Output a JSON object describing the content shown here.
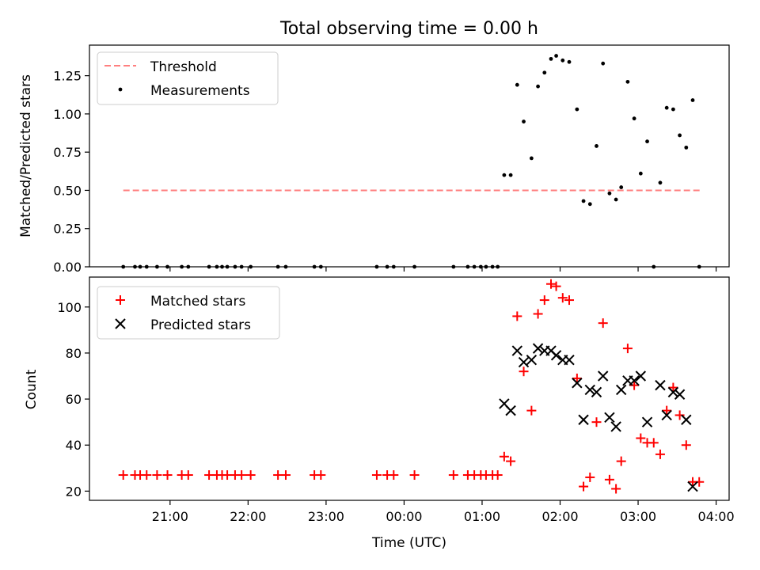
{
  "title": "Total observing time = 0.00 h",
  "colors": {
    "threshold": "#ff7f7f",
    "measurements": "#000000",
    "matched": "#ff0000",
    "predicted": "#000000"
  },
  "chart_data": [
    {
      "type": "scatter",
      "ylabel": "Matched/Predicted stars",
      "ylim": [
        0,
        1.45
      ],
      "y_ticks": [
        "0.00",
        "0.25",
        "0.50",
        "0.75",
        "1.00",
        "1.25"
      ],
      "legend": {
        "placement": "top-left",
        "entries": [
          "Threshold",
          "Measurements"
        ]
      },
      "threshold": {
        "name": "Threshold",
        "value": 0.5,
        "x_range": [
          "20:24",
          "03:48"
        ]
      },
      "series": [
        {
          "name": "Measurements",
          "points": [
            [
              "20:24",
              0.0
            ],
            [
              "20:33",
              0.0
            ],
            [
              "20:37",
              0.0
            ],
            [
              "20:42",
              0.0
            ],
            [
              "20:50",
              0.0
            ],
            [
              "20:58",
              0.0
            ],
            [
              "21:09",
              0.0
            ],
            [
              "21:14",
              0.0
            ],
            [
              "21:30",
              0.0
            ],
            [
              "21:36",
              0.0
            ],
            [
              "21:40",
              0.0
            ],
            [
              "21:44",
              0.0
            ],
            [
              "21:50",
              0.0
            ],
            [
              "21:55",
              0.0
            ],
            [
              "22:02",
              0.0
            ],
            [
              "22:23",
              0.0
            ],
            [
              "22:29",
              0.0
            ],
            [
              "22:51",
              0.0
            ],
            [
              "22:56",
              0.0
            ],
            [
              "23:39",
              0.0
            ],
            [
              "23:47",
              0.0
            ],
            [
              "23:52",
              0.0
            ],
            [
              "00:08",
              0.0
            ],
            [
              "00:38",
              0.0
            ],
            [
              "00:49",
              0.0
            ],
            [
              "00:54",
              0.0
            ],
            [
              "00:59",
              0.0
            ],
            [
              "01:03",
              0.0
            ],
            [
              "01:08",
              0.0
            ],
            [
              "01:12",
              0.0
            ],
            [
              "01:17",
              0.6
            ],
            [
              "01:22",
              0.6
            ],
            [
              "01:27",
              1.19
            ],
            [
              "01:32",
              0.95
            ],
            [
              "01:38",
              0.71
            ],
            [
              "01:43",
              1.18
            ],
            [
              "01:48",
              1.27
            ],
            [
              "01:53",
              1.36
            ],
            [
              "01:57",
              1.38
            ],
            [
              "02:02",
              1.35
            ],
            [
              "02:07",
              1.34
            ],
            [
              "02:13",
              1.03
            ],
            [
              "02:18",
              0.43
            ],
            [
              "02:23",
              0.41
            ],
            [
              "02:28",
              0.79
            ],
            [
              "02:33",
              1.33
            ],
            [
              "02:38",
              0.48
            ],
            [
              "02:43",
              0.44
            ],
            [
              "02:47",
              0.52
            ],
            [
              "02:52",
              1.21
            ],
            [
              "02:57",
              0.97
            ],
            [
              "03:02",
              0.61
            ],
            [
              "03:07",
              0.82
            ],
            [
              "03:12",
              0.0
            ],
            [
              "03:17",
              0.55
            ],
            [
              "03:22",
              1.04
            ],
            [
              "03:27",
              1.03
            ],
            [
              "03:32",
              0.86
            ],
            [
              "03:37",
              0.78
            ],
            [
              "03:42",
              1.09
            ],
            [
              "03:47",
              0.0
            ]
          ]
        }
      ]
    },
    {
      "type": "scatter",
      "xlabel": "Time (UTC)",
      "ylabel": "Count",
      "ylim": [
        16,
        113
      ],
      "y_ticks": [
        "20",
        "40",
        "60",
        "80",
        "100"
      ],
      "x_ticks": [
        "21:00",
        "22:00",
        "23:00",
        "00:00",
        "01:00",
        "02:00",
        "03:00",
        "04:00"
      ],
      "legend": {
        "placement": "top-left",
        "entries": [
          "Matched stars",
          "Predicted stars"
        ]
      },
      "series": [
        {
          "name": "Matched stars",
          "points": [
            [
              "20:24",
              27
            ],
            [
              "20:33",
              27
            ],
            [
              "20:37",
              27
            ],
            [
              "20:42",
              27
            ],
            [
              "20:50",
              27
            ],
            [
              "20:58",
              27
            ],
            [
              "21:09",
              27
            ],
            [
              "21:14",
              27
            ],
            [
              "21:30",
              27
            ],
            [
              "21:36",
              27
            ],
            [
              "21:40",
              27
            ],
            [
              "21:44",
              27
            ],
            [
              "21:50",
              27
            ],
            [
              "21:55",
              27
            ],
            [
              "22:02",
              27
            ],
            [
              "22:23",
              27
            ],
            [
              "22:29",
              27
            ],
            [
              "22:51",
              27
            ],
            [
              "22:56",
              27
            ],
            [
              "23:39",
              27
            ],
            [
              "23:47",
              27
            ],
            [
              "23:52",
              27
            ],
            [
              "00:08",
              27
            ],
            [
              "00:38",
              27
            ],
            [
              "00:49",
              27
            ],
            [
              "00:54",
              27
            ],
            [
              "00:59",
              27
            ],
            [
              "01:03",
              27
            ],
            [
              "01:08",
              27
            ],
            [
              "01:12",
              27
            ],
            [
              "01:17",
              35
            ],
            [
              "01:22",
              33
            ],
            [
              "01:27",
              96
            ],
            [
              "01:32",
              72
            ],
            [
              "01:38",
              55
            ],
            [
              "01:43",
              97
            ],
            [
              "01:48",
              103
            ],
            [
              "01:53",
              110
            ],
            [
              "01:57",
              109
            ],
            [
              "02:02",
              104
            ],
            [
              "02:07",
              103
            ],
            [
              "02:13",
              69
            ],
            [
              "02:18",
              22
            ],
            [
              "02:23",
              26
            ],
            [
              "02:28",
              50
            ],
            [
              "02:33",
              93
            ],
            [
              "02:38",
              25
            ],
            [
              "02:43",
              21
            ],
            [
              "02:47",
              33
            ],
            [
              "02:52",
              82
            ],
            [
              "02:57",
              66
            ],
            [
              "03:02",
              43
            ],
            [
              "03:07",
              41
            ],
            [
              "03:12",
              41
            ],
            [
              "03:17",
              36
            ],
            [
              "03:22",
              55
            ],
            [
              "03:27",
              65
            ],
            [
              "03:32",
              53
            ],
            [
              "03:37",
              40
            ],
            [
              "03:42",
              24
            ],
            [
              "03:47",
              24
            ]
          ]
        },
        {
          "name": "Predicted stars",
          "points": [
            [
              "01:17",
              58
            ],
            [
              "01:22",
              55
            ],
            [
              "01:27",
              81
            ],
            [
              "01:32",
              76
            ],
            [
              "01:38",
              77
            ],
            [
              "01:43",
              82
            ],
            [
              "01:48",
              81
            ],
            [
              "01:53",
              81
            ],
            [
              "01:57",
              79
            ],
            [
              "02:02",
              77
            ],
            [
              "02:07",
              77
            ],
            [
              "02:13",
              67
            ],
            [
              "02:18",
              51
            ],
            [
              "02:23",
              64
            ],
            [
              "02:28",
              63
            ],
            [
              "02:33",
              70
            ],
            [
              "02:38",
              52
            ],
            [
              "02:43",
              48
            ],
            [
              "02:47",
              64
            ],
            [
              "02:52",
              68
            ],
            [
              "02:57",
              68
            ],
            [
              "03:02",
              70
            ],
            [
              "03:07",
              50
            ],
            [
              "03:17",
              66
            ],
            [
              "03:22",
              53
            ],
            [
              "03:27",
              63
            ],
            [
              "03:32",
              62
            ],
            [
              "03:37",
              51
            ],
            [
              "03:42",
              22
            ]
          ]
        }
      ]
    }
  ]
}
